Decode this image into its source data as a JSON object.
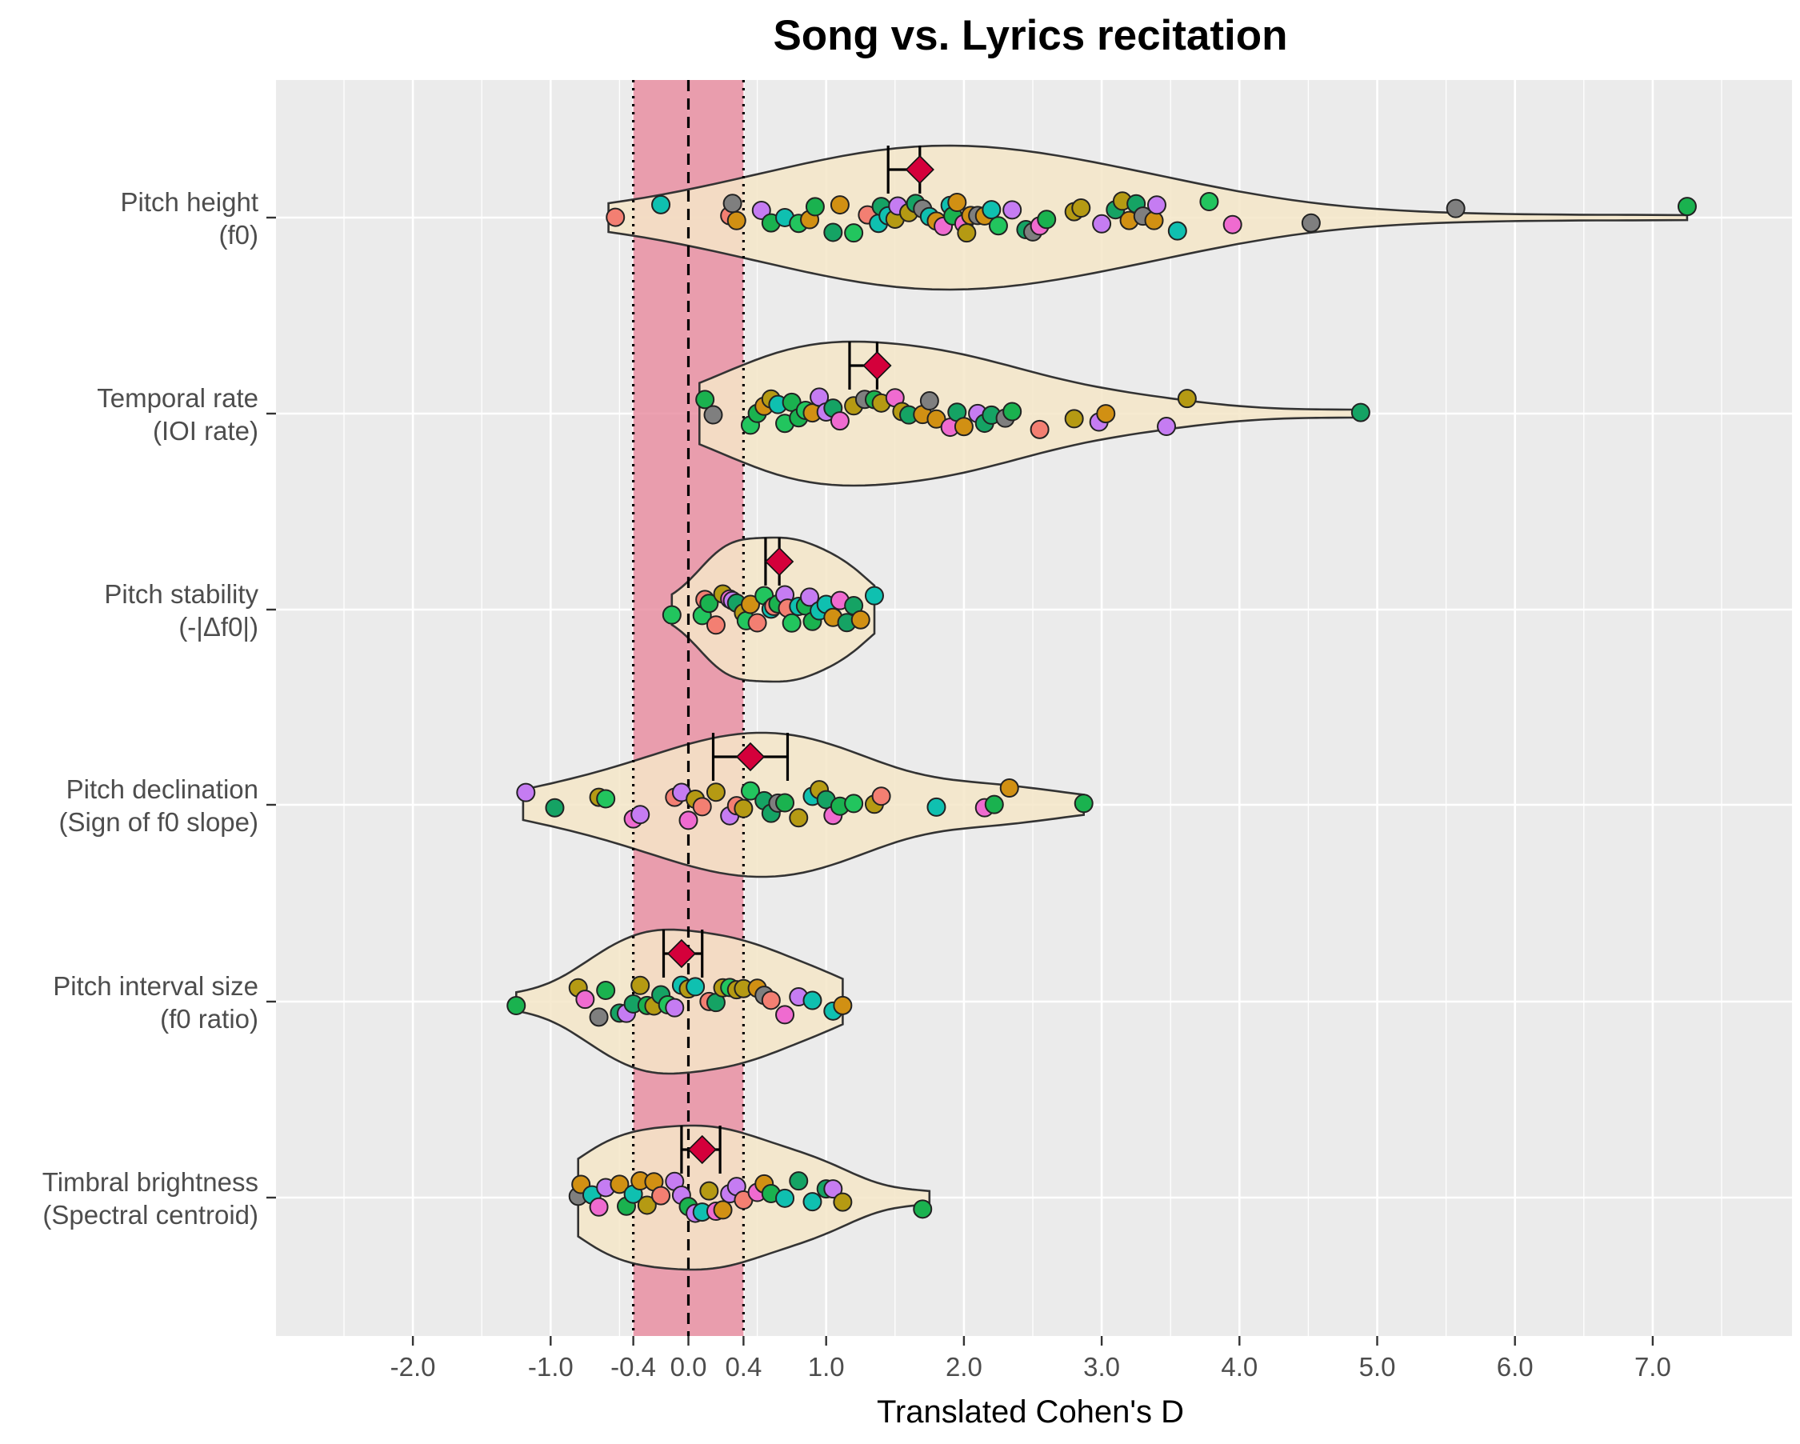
{
  "chart_data": {
    "type": "violin",
    "title": "Song vs. Lyrics recitation",
    "xlabel": "Translated Cohen's D",
    "ylabel": "",
    "xlim": [
      -2.5,
      7.5
    ],
    "xticks": [
      -2.0,
      -1.0,
      -0.4,
      0.0,
      0.4,
      1.0,
      2.0,
      3.0,
      4.0,
      5.0,
      6.0,
      7.0
    ],
    "xtick_labels": [
      "-2.0",
      "-1.0",
      "-0.4",
      "0.0",
      "0.4",
      "1.0",
      "2.0",
      "3.0",
      "4.0",
      "5.0",
      "6.0",
      "7.0"
    ],
    "grid": true,
    "reference": {
      "dashed_line_at": 0.0,
      "dotted_lines_at": [
        -0.4,
        0.4
      ],
      "shaded_band": [
        -0.4,
        0.4
      ],
      "band_color": "#e8899d"
    },
    "colors": {
      "panel": "#ebebeb",
      "grid": "#ffffff",
      "violin_fill": "#f5e6c8",
      "violin_stroke": "#333333",
      "diamond": "#d4003b",
      "point_palette": [
        "#1ab24f",
        "#22c55e",
        "#0fc0b0",
        "#b59a13",
        "#d19013",
        "#f37f72",
        "#ef6bd0",
        "#c57cf2",
        "#7f7f7f",
        "#15a364"
      ]
    },
    "categories": [
      {
        "label_line1": "Pitch height",
        "label_line2": "(f0)",
        "mean": 1.68,
        "ci": [
          1.45,
          1.68
        ],
        "violin_range": [
          -0.58,
          7.25
        ],
        "points": [
          -0.53,
          -0.2,
          0.3,
          0.32,
          0.35,
          0.53,
          0.6,
          0.7,
          0.8,
          0.88,
          0.92,
          1.05,
          1.1,
          1.2,
          1.3,
          1.38,
          1.4,
          1.45,
          1.5,
          1.52,
          1.6,
          1.65,
          1.7,
          1.75,
          1.8,
          1.85,
          1.9,
          1.92,
          1.95,
          2.0,
          2.02,
          2.05,
          2.1,
          2.15,
          2.2,
          2.25,
          2.35,
          2.45,
          2.5,
          2.55,
          2.6,
          2.8,
          2.85,
          3.0,
          3.1,
          3.15,
          3.2,
          3.25,
          3.3,
          3.38,
          3.4,
          3.55,
          3.78,
          3.95,
          4.52,
          5.57,
          7.25
        ]
      },
      {
        "label_line1": "Temporal rate",
        "label_line2": "(IOI rate)",
        "mean": 1.37,
        "ci": [
          1.17,
          1.37
        ],
        "violin_range": [
          0.08,
          4.88
        ],
        "points": [
          0.12,
          0.18,
          0.45,
          0.5,
          0.55,
          0.6,
          0.65,
          0.7,
          0.75,
          0.8,
          0.85,
          0.9,
          0.95,
          1.0,
          1.05,
          1.1,
          1.2,
          1.28,
          1.35,
          1.4,
          1.5,
          1.55,
          1.6,
          1.7,
          1.75,
          1.8,
          1.9,
          1.95,
          2.0,
          2.1,
          2.15,
          2.2,
          2.3,
          2.35,
          2.55,
          2.8,
          2.98,
          3.03,
          3.47,
          3.62,
          4.88
        ]
      },
      {
        "label_line1": "Pitch stability",
        "label_line2": "(-|Δf0|)",
        "mean": 0.66,
        "ci": [
          0.56,
          0.66
        ],
        "violin_range": [
          -0.12,
          1.35
        ],
        "points": [
          -0.12,
          0.1,
          0.12,
          0.15,
          0.2,
          0.25,
          0.3,
          0.32,
          0.35,
          0.4,
          0.42,
          0.45,
          0.5,
          0.55,
          0.6,
          0.62,
          0.65,
          0.7,
          0.72,
          0.75,
          0.8,
          0.85,
          0.88,
          0.9,
          0.95,
          1.0,
          1.05,
          1.1,
          1.15,
          1.2,
          1.25,
          1.35
        ]
      },
      {
        "label_line1": "Pitch declination",
        "label_line2": "(Sign of f0 slope)",
        "mean": 0.45,
        "ci": [
          0.18,
          0.72
        ],
        "violin_range": [
          -1.2,
          2.87
        ],
        "points": [
          -1.18,
          -0.97,
          -0.65,
          -0.6,
          -0.4,
          -0.35,
          -0.1,
          -0.05,
          0.0,
          0.05,
          0.1,
          0.2,
          0.3,
          0.35,
          0.4,
          0.45,
          0.55,
          0.6,
          0.65,
          0.7,
          0.8,
          0.9,
          0.95,
          1.0,
          1.05,
          1.1,
          1.2,
          1.35,
          1.4,
          1.8,
          2.15,
          2.22,
          2.33,
          2.87
        ]
      },
      {
        "label_line1": "Pitch interval size",
        "label_line2": "(f0 ratio)",
        "mean": -0.05,
        "ci": [
          -0.18,
          0.1
        ],
        "violin_range": [
          -1.25,
          1.12
        ],
        "points": [
          -1.25,
          -0.8,
          -0.75,
          -0.65,
          -0.6,
          -0.5,
          -0.45,
          -0.4,
          -0.35,
          -0.3,
          -0.25,
          -0.2,
          -0.15,
          -0.1,
          -0.05,
          0.0,
          0.05,
          0.15,
          0.2,
          0.25,
          0.3,
          0.35,
          0.4,
          0.5,
          0.55,
          0.6,
          0.7,
          0.8,
          0.9,
          1.05,
          1.12
        ]
      },
      {
        "label_line1": "Timbral brightness",
        "label_line2": "(Spectral centroid)",
        "mean": 0.1,
        "ci": [
          -0.05,
          0.23
        ],
        "violin_range": [
          -0.8,
          1.75
        ],
        "points": [
          -0.8,
          -0.78,
          -0.7,
          -0.65,
          -0.6,
          -0.5,
          -0.45,
          -0.4,
          -0.35,
          -0.3,
          -0.25,
          -0.2,
          -0.1,
          -0.05,
          0.0,
          0.05,
          0.1,
          0.15,
          0.2,
          0.25,
          0.3,
          0.35,
          0.4,
          0.5,
          0.55,
          0.6,
          0.7,
          0.8,
          0.9,
          1.0,
          1.05,
          1.12,
          1.7
        ]
      }
    ]
  }
}
